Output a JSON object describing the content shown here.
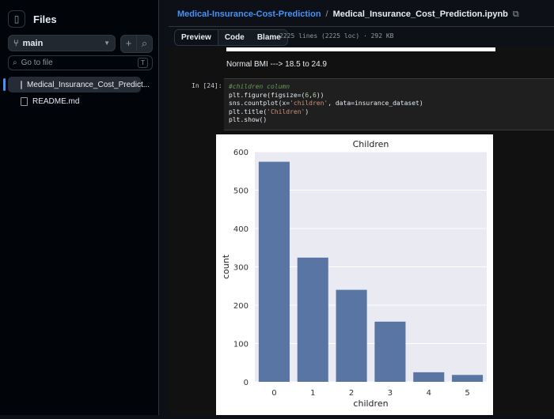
{
  "sidebar": {
    "title": "Files",
    "branch": "main",
    "search_placeholder": "Go to file",
    "search_key": "T",
    "files": [
      {
        "label": "Medical_Insurance_Cost_Predict...",
        "active": true
      },
      {
        "label": "README.md",
        "active": false
      }
    ]
  },
  "header": {
    "repo": "Medical-Insurance-Cost-Prediction",
    "separator": "/",
    "file": "Medical_Insurance_Cost_Prediction.ipynb"
  },
  "tabs": [
    "Preview",
    "Code",
    "Blame"
  ],
  "file_info": "2225 lines (2225 loc) · 292 KB",
  "notebook": {
    "markdown_line": "Normal BMI ---> 18.5 to 24.9",
    "prompt": "In [24]:",
    "code": {
      "comment": "#children column",
      "line1_a": "plt.figure(figsize=(",
      "line1_num1": "6",
      "line1_comma": ",",
      "line1_num2": "6",
      "line1_b": "))",
      "line2_a": "sns.countplot(x=",
      "line2_str": "'children'",
      "line2_b": ", data=insurance_dataset)",
      "line3_a": "plt.title(",
      "line3_str": "'Children'",
      "line3_b": ")",
      "line4": "plt.show()"
    }
  },
  "chart_data": {
    "type": "bar",
    "title": "Children",
    "xlabel": "children",
    "ylabel": "count",
    "categories": [
      "0",
      "1",
      "2",
      "3",
      "4",
      "5"
    ],
    "values": [
      574,
      324,
      240,
      157,
      25,
      18
    ],
    "ylim": [
      0,
      600
    ],
    "yticks": [
      "0",
      "100",
      "200",
      "300",
      "400",
      "500",
      "600"
    ],
    "grid": true,
    "colors": {
      "bar": "#5975a4",
      "plot_bg": "#eaeaf2",
      "grid": "#ffffff"
    }
  }
}
